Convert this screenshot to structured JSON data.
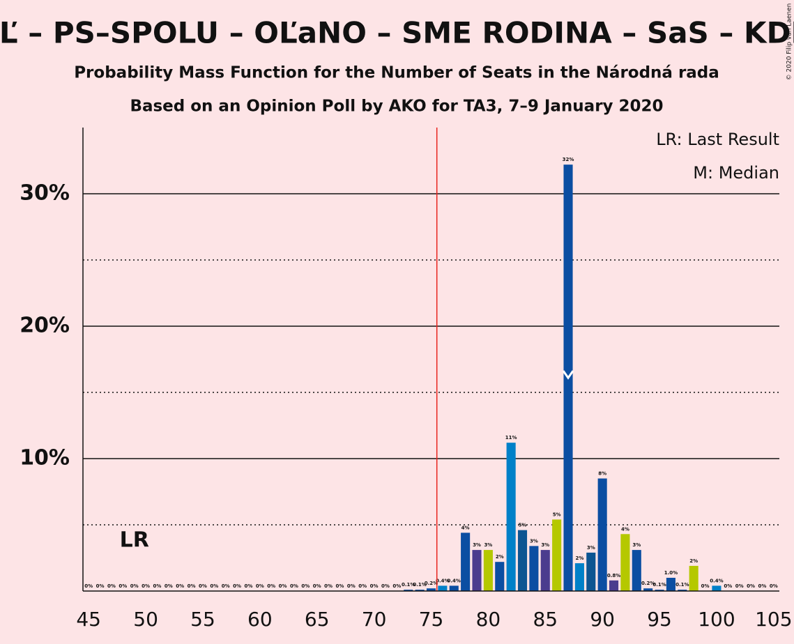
{
  "chart_data": {
    "type": "bar",
    "title": "ZĽ – PS–SPOLU – OĽaNO – SME RODINA – SaS – KDH",
    "subtitle": "Probability Mass Function for the Number of Seats in the Národná rada",
    "subtitle2": "Based on an Opinion Poll by AKO for TA3, 7–9 January 2020",
    "copyright": "© 2020 Filip van Laenen",
    "legend": [
      "LR: Last Result",
      "M: Median"
    ],
    "last_result": {
      "label": "LR",
      "seat": 49
    },
    "median": {
      "seat": 87
    },
    "majority_line": 75.5,
    "majority_color": "#e8231e",
    "x": [
      45,
      46,
      47,
      48,
      49,
      50,
      51,
      52,
      53,
      54,
      55,
      56,
      57,
      58,
      59,
      60,
      61,
      62,
      63,
      64,
      65,
      66,
      67,
      68,
      69,
      70,
      71,
      72,
      73,
      74,
      75,
      76,
      77,
      78,
      79,
      80,
      81,
      82,
      83,
      84,
      85,
      86,
      87,
      88,
      89,
      90,
      91,
      92,
      93,
      94,
      95,
      96,
      97,
      98,
      99,
      100,
      101,
      102,
      103,
      104,
      105
    ],
    "values": [
      0,
      0,
      0,
      0,
      0,
      0,
      0,
      0,
      0,
      0,
      0,
      0,
      0,
      0,
      0,
      0,
      0,
      0,
      0,
      0,
      0,
      0,
      0,
      0,
      0,
      0,
      0,
      0,
      0.1,
      0.1,
      0.2,
      0.4,
      0.4,
      4.4,
      3.1,
      3.1,
      2.2,
      11.2,
      4.6,
      3.4,
      3.1,
      5.4,
      32.2,
      2.1,
      2.9,
      8.5,
      0.8,
      4.3,
      3.1,
      0.2,
      0.1,
      1.0,
      0.1,
      1.9,
      0,
      0.4,
      0,
      0,
      0,
      0,
      0
    ],
    "value_labels": [
      "0%",
      "0%",
      "0%",
      "0%",
      "0%",
      "0%",
      "0%",
      "0%",
      "0%",
      "0%",
      "0%",
      "0%",
      "0%",
      "0%",
      "0%",
      "0%",
      "0%",
      "0%",
      "0%",
      "0%",
      "0%",
      "0%",
      "0%",
      "0%",
      "0%",
      "0%",
      "0%",
      "0%",
      "0.1%",
      "0.1%",
      "0.2%",
      "0.4%",
      "0.4%",
      "4%",
      "3%",
      "3%",
      "2%",
      "11%",
      "5%",
      "3%",
      "3%",
      "5%",
      "32%",
      "2%",
      "3%",
      "8%",
      "0.8%",
      "4%",
      "3%",
      "0.2%",
      "0.1%",
      "1.0%",
      "0.1%",
      "2%",
      "0%",
      "0.4%",
      "0%",
      "0%",
      "0%",
      "0%",
      "0%"
    ],
    "colors": [
      "#0b4ea2",
      "#0b4ea2",
      "#0b4ea2",
      "#0b4ea2",
      "#0b4ea2",
      "#0b4ea2",
      "#0b4ea2",
      "#0b4ea2",
      "#0b4ea2",
      "#0b4ea2",
      "#0b4ea2",
      "#0b4ea2",
      "#0b4ea2",
      "#0b4ea2",
      "#0b4ea2",
      "#0b4ea2",
      "#0b4ea2",
      "#0b4ea2",
      "#0b4ea2",
      "#0b4ea2",
      "#0b4ea2",
      "#0b4ea2",
      "#0b4ea2",
      "#0b4ea2",
      "#0b4ea2",
      "#0b4ea2",
      "#0b4ea2",
      "#0b4ea2",
      "#0b4ea2",
      "#0b4ea2",
      "#0b4ea2",
      "#0080c8",
      "#0b4ea2",
      "#0b4ea2",
      "#4b3c8e",
      "#b5c800",
      "#0b4ea2",
      "#0080c8",
      "#0d5592",
      "#0b4ea2",
      "#4b3c8e",
      "#b5c800",
      "#0b4ea2",
      "#0080c8",
      "#0d5592",
      "#0b4ea2",
      "#4b3c8e",
      "#b5c800",
      "#0b4ea2",
      "#0b4ea2",
      "#0b4ea2",
      "#0b4ea2",
      "#0b4ea2",
      "#b5c800",
      "#0b4ea2",
      "#0080c8",
      "#0b4ea2",
      "#0b4ea2",
      "#0b4ea2",
      "#0b4ea2",
      "#0b4ea2"
    ],
    "xlim": [
      44.5,
      105.5
    ],
    "xticks": [
      45,
      50,
      55,
      60,
      65,
      70,
      75,
      80,
      85,
      90,
      95,
      100,
      105
    ],
    "ylim": [
      0,
      35
    ],
    "yticks": [
      {
        "value": 10,
        "label": "10%"
      },
      {
        "value": 20,
        "label": "20%"
      },
      {
        "value": 30,
        "label": "30%"
      }
    ],
    "minor_grid": [
      5,
      15,
      25
    ]
  }
}
